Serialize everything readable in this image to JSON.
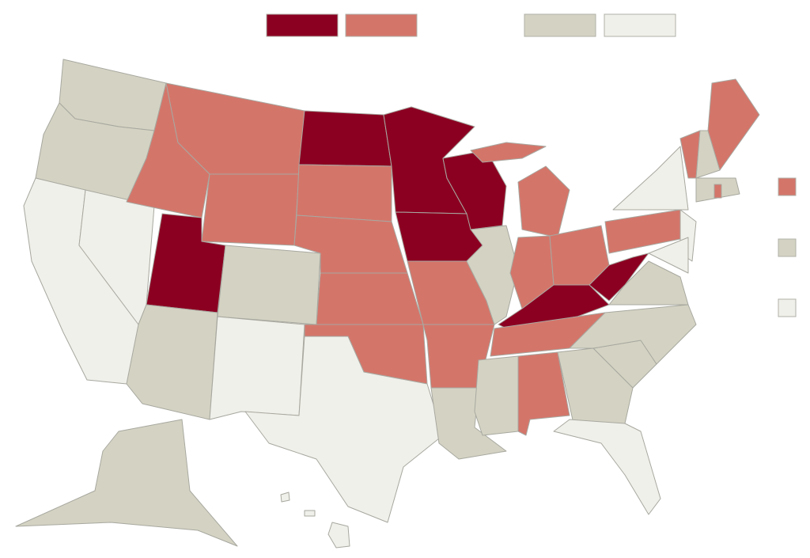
{
  "legend": {
    "top_colors": [
      "#8b0021",
      "#d4756a",
      "#d4d3c3",
      "#f0f0ea"
    ],
    "side_colors": [
      "#d4756a",
      "#d4d3c3",
      "#f0f0ea"
    ]
  }
}
